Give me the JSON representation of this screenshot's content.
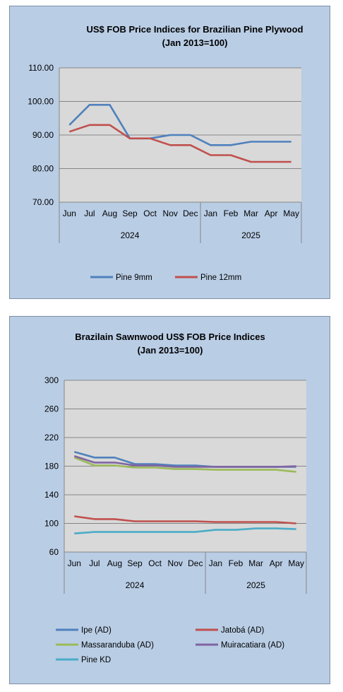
{
  "chart_data": [
    {
      "type": "line",
      "title": "US$ FOB Price Indices for Brazilian  Pine Plywood",
      "subtitle": "(Jan 2013=100)",
      "categories": [
        "Jun",
        "Jul",
        "Aug",
        "Sep",
        "Oct",
        "Nov",
        "Dec",
        "Jan",
        "Feb",
        "Mar",
        "Apr",
        "May"
      ],
      "year_groups": [
        {
          "label": "2024",
          "span": 7
        },
        {
          "label": "2025",
          "span": 5
        }
      ],
      "y_ticks": [
        "70.00",
        "80.00",
        "90.00",
        "100.00",
        "110.00"
      ],
      "ylim": [
        70,
        110
      ],
      "grid": true,
      "legend_position": "bottom",
      "series": [
        {
          "name": "Pine 9mm",
          "color": "#4f81bd",
          "values": [
            93,
            99,
            99,
            89,
            89,
            90,
            90,
            87,
            87,
            88,
            88,
            88
          ]
        },
        {
          "name": "Pine 12mm",
          "color": "#c0504d",
          "values": [
            91,
            93,
            93,
            89,
            89,
            87,
            87,
            84,
            84,
            82,
            82,
            82
          ]
        }
      ]
    },
    {
      "type": "line",
      "title": "Brazilain Sawnwood US$ FOB Price Indices",
      "subtitle": "(Jan 2013=100)",
      "categories": [
        "Jun",
        "Jul",
        "Aug",
        "Sep",
        "Oct",
        "Nov",
        "Dec",
        "Jan",
        "Feb",
        "Mar",
        "Apr",
        "May"
      ],
      "year_groups": [
        {
          "label": "2024",
          "span": 7
        },
        {
          "label": "2025",
          "span": 5
        }
      ],
      "y_ticks": [
        "60",
        "100",
        "140",
        "180",
        "220",
        "260",
        "300"
      ],
      "ylim": [
        60,
        300
      ],
      "grid": true,
      "legend_position": "bottom",
      "series": [
        {
          "name": "Ipe (AD)",
          "color": "#4f81bd",
          "values": [
            200,
            192,
            192,
            183,
            183,
            181,
            181,
            179,
            179,
            179,
            179,
            179
          ]
        },
        {
          "name": "Jatobá (AD)",
          "color": "#c0504d",
          "values": [
            110,
            106,
            106,
            103,
            103,
            103,
            103,
            102,
            102,
            102,
            102,
            100
          ]
        },
        {
          "name": "Massaranduba (AD)",
          "color": "#9bbb59",
          "values": [
            192,
            181,
            181,
            178,
            178,
            176,
            176,
            175,
            175,
            175,
            175,
            172
          ]
        },
        {
          "name": "Muiracatiara (AD)",
          "color": "#8064a2",
          "values": [
            194,
            185,
            185,
            181,
            181,
            179,
            179,
            179,
            179,
            179,
            179,
            180
          ]
        },
        {
          "name": "Pine KD",
          "color": "#4bacc6",
          "values": [
            86,
            88,
            88,
            88,
            88,
            88,
            88,
            91,
            91,
            93,
            93,
            92
          ]
        }
      ]
    }
  ]
}
